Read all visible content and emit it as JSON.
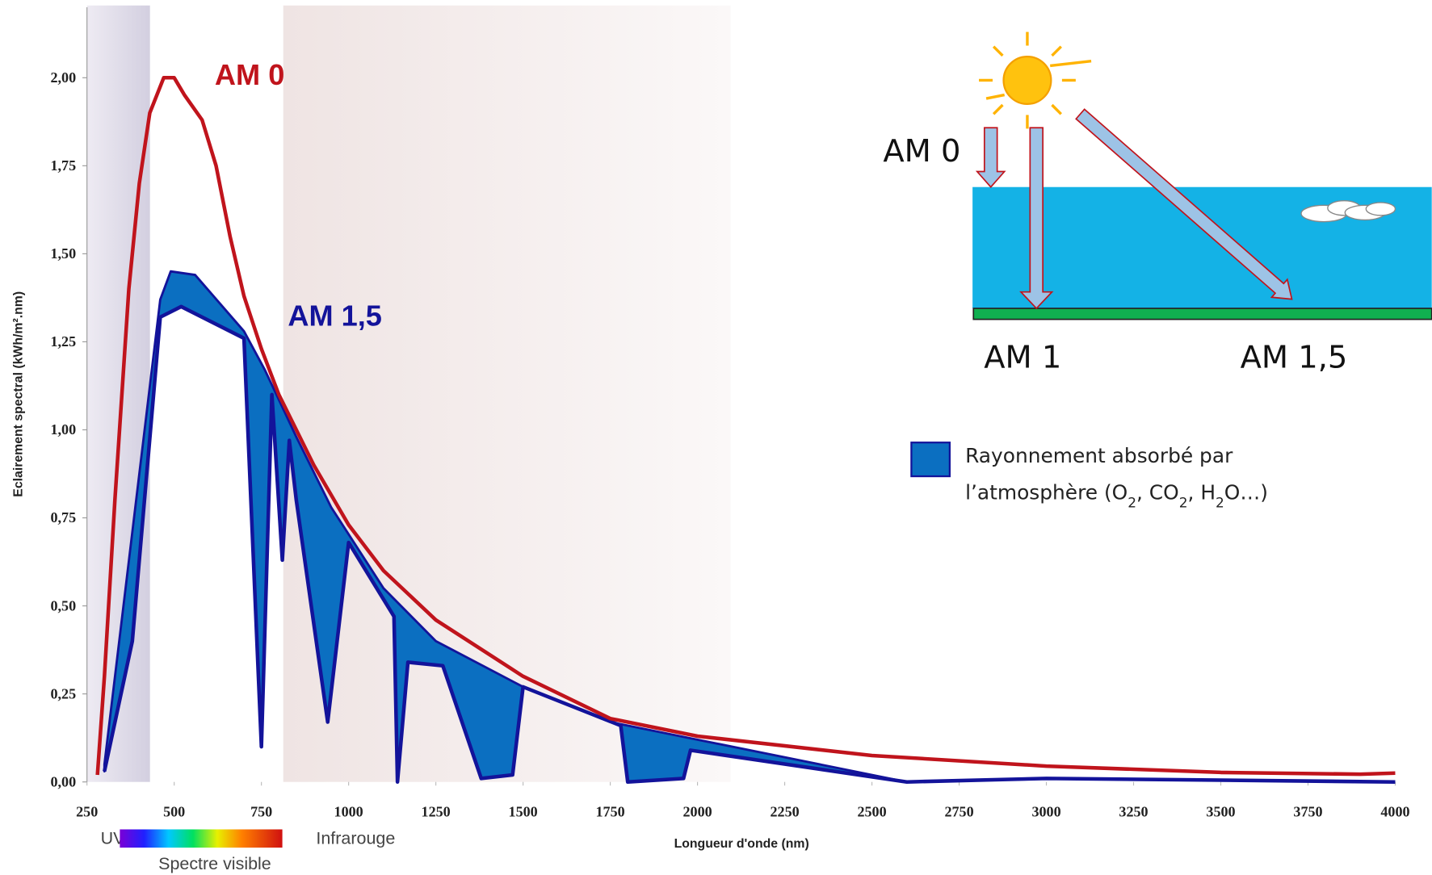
{
  "chart_data": {
    "type": "line",
    "y_label": "Eclairement spectral (kWh/m².nm)",
    "x_label": "Longueur d'onde (nm)",
    "xlim": [
      250,
      4000
    ],
    "ylim": [
      0,
      2.2
    ],
    "xticks": [
      250,
      500,
      750,
      1000,
      1250,
      1500,
      1750,
      2000,
      2250,
      2500,
      2750,
      3000,
      3250,
      3500,
      3750,
      4000
    ],
    "yticks": [
      {
        "value": 0,
        "label": "0,00"
      },
      {
        "value": 0.25,
        "label": "0,25"
      },
      {
        "value": 0.5,
        "label": "0,50"
      },
      {
        "value": 0.75,
        "label": "0,75"
      },
      {
        "value": 1,
        "label": "1,00"
      },
      {
        "value": 1.25,
        "label": "1,25"
      },
      {
        "value": 1.5,
        "label": "1,50"
      },
      {
        "value": 1.75,
        "label": "1,75"
      },
      {
        "value": 2,
        "label": "2,00"
      }
    ],
    "series": [
      {
        "name": "AM 0",
        "color": "#c0141c",
        "x": [
          280,
          300,
          330,
          370,
          400,
          430,
          470,
          500,
          530,
          580,
          620,
          660,
          700,
          750,
          800,
          900,
          1000,
          1100,
          1250,
          1500,
          1750,
          2000,
          2500,
          3000,
          3500,
          3900,
          4000
        ],
        "values": [
          0.02,
          0.3,
          0.8,
          1.4,
          1.7,
          1.9,
          2.0,
          2.0,
          1.95,
          1.88,
          1.75,
          1.55,
          1.38,
          1.23,
          1.1,
          0.9,
          0.73,
          0.6,
          0.46,
          0.3,
          0.18,
          0.13,
          0.075,
          0.045,
          0.027,
          0.022,
          0.025
        ]
      },
      {
        "name": "AM 1,5",
        "color": "#13139a",
        "x": [
          300,
          380,
          460,
          520,
          700,
          750,
          780,
          810,
          830,
          850,
          940,
          1000,
          1130,
          1140,
          1170,
          1270,
          1380,
          1470,
          1500,
          1780,
          1800,
          1960,
          1980,
          2600,
          3000,
          4000
        ],
        "values": [
          0.03,
          0.4,
          1.32,
          1.35,
          1.26,
          0.1,
          1.1,
          0.63,
          0.97,
          0.8,
          0.17,
          0.68,
          0.47,
          0,
          0.34,
          0.33,
          0.01,
          0.02,
          0.27,
          0.16,
          0,
          0.01,
          0.09,
          0,
          0.01,
          0
        ]
      }
    ],
    "absorbed": {
      "color": "#0b6fc1",
      "x": [
        300,
        460,
        490,
        560,
        700,
        760,
        850,
        950,
        1100,
        1250,
        1500,
        1750,
        2000,
        2300,
        2600
      ],
      "values": [
        0.05,
        1.37,
        1.45,
        1.44,
        1.28,
        1.17,
        0.98,
        0.78,
        0.55,
        0.4,
        0.27,
        0.17,
        0.12,
        0.06,
        0
      ],
      "legend_lines": [
        [
          "Rayonnement absorbé par"
        ],
        [
          "l’atmosphère (O",
          "2",
          ", CO",
          "2",
          ", H",
          "2",
          "O…)"
        ]
      ]
    },
    "spectrum_labels": {
      "uv": "UV",
      "infrared": "Infrarouge",
      "visible": "Spectre visible"
    },
    "diagram": {
      "labels": [
        "AM 0",
        "AM 1",
        "AM 1,5"
      ]
    }
  }
}
